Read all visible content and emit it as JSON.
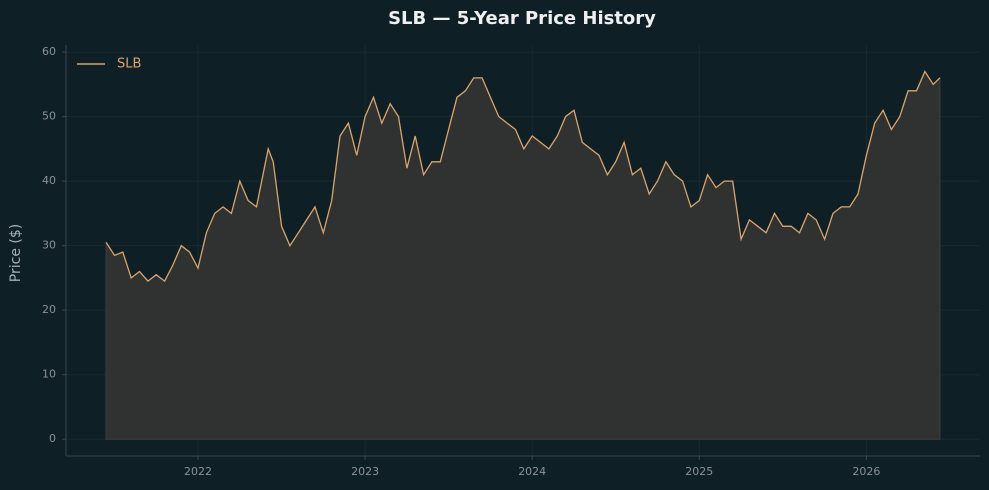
{
  "chart_data": {
    "type": "area-line",
    "title": "SLB — 5-Year Price History",
    "ylabel": "Price ($)",
    "x": [
      2021.45,
      2021.5,
      2021.55,
      2021.6,
      2021.65,
      2021.7,
      2021.75,
      2021.8,
      2021.85,
      2021.9,
      2021.95,
      2022.0,
      2022.05,
      2022.1,
      2022.15,
      2022.2,
      2022.25,
      2022.3,
      2022.35,
      2022.42,
      2022.45,
      2022.5,
      2022.55,
      2022.6,
      2022.65,
      2022.7,
      2022.75,
      2022.8,
      2022.85,
      2022.9,
      2022.95,
      2023.0,
      2023.05,
      2023.1,
      2023.15,
      2023.2,
      2023.25,
      2023.3,
      2023.35,
      2023.4,
      2023.45,
      2023.5,
      2023.55,
      2023.6,
      2023.65,
      2023.7,
      2023.75,
      2023.8,
      2023.85,
      2023.9,
      2023.95,
      2024.0,
      2024.05,
      2024.1,
      2024.15,
      2024.2,
      2024.25,
      2024.3,
      2024.35,
      2024.4,
      2024.45,
      2024.5,
      2024.55,
      2024.6,
      2024.65,
      2024.7,
      2024.75,
      2024.8,
      2024.85,
      2024.9,
      2024.95,
      2025.0,
      2025.05,
      2025.1,
      2025.15,
      2025.2,
      2025.25,
      2025.3,
      2025.35,
      2025.4,
      2025.45,
      2025.5,
      2025.55,
      2025.6,
      2025.65,
      2025.7,
      2025.75,
      2025.8,
      2025.85,
      2025.9,
      2025.95,
      2026.0,
      2026.05,
      2026.1,
      2026.15,
      2026.2,
      2026.25,
      2026.3,
      2026.35,
      2026.4,
      2026.44
    ],
    "series": [
      {
        "name": "SLB",
        "color": "#d9a46c",
        "values": [
          30.5,
          28.5,
          29,
          25,
          26,
          24.5,
          25.5,
          24.5,
          27,
          30,
          29,
          26.5,
          32,
          35,
          36,
          35,
          40,
          37,
          36,
          45,
          43,
          33,
          30,
          32,
          34,
          36,
          32,
          37,
          47,
          49,
          44,
          50,
          53,
          49,
          52,
          50,
          42,
          47,
          41,
          43,
          43,
          48,
          53,
          54,
          56,
          56,
          53,
          50,
          49,
          48,
          45,
          47,
          46,
          45,
          47,
          50,
          51,
          46,
          45,
          44,
          41,
          43,
          46,
          41,
          42,
          38,
          40,
          43,
          41,
          40,
          36,
          37,
          41,
          39,
          40,
          40,
          31,
          34,
          33,
          32,
          35,
          33,
          33,
          32,
          35,
          34,
          31,
          35,
          36,
          36,
          38,
          44,
          49,
          51,
          48,
          50,
          54,
          54,
          57,
          55,
          56
        ]
      }
    ],
    "area_color": "#2f3231",
    "xlim": [
      2021.21,
      2026.68
    ],
    "xticks": [
      2022,
      2023,
      2024,
      2025,
      2026
    ],
    "ylim": [
      -2.6,
      61.1
    ],
    "yticks": [
      0,
      10,
      20,
      30,
      40,
      50,
      60
    ],
    "grid": true,
    "legend": "upper left"
  }
}
